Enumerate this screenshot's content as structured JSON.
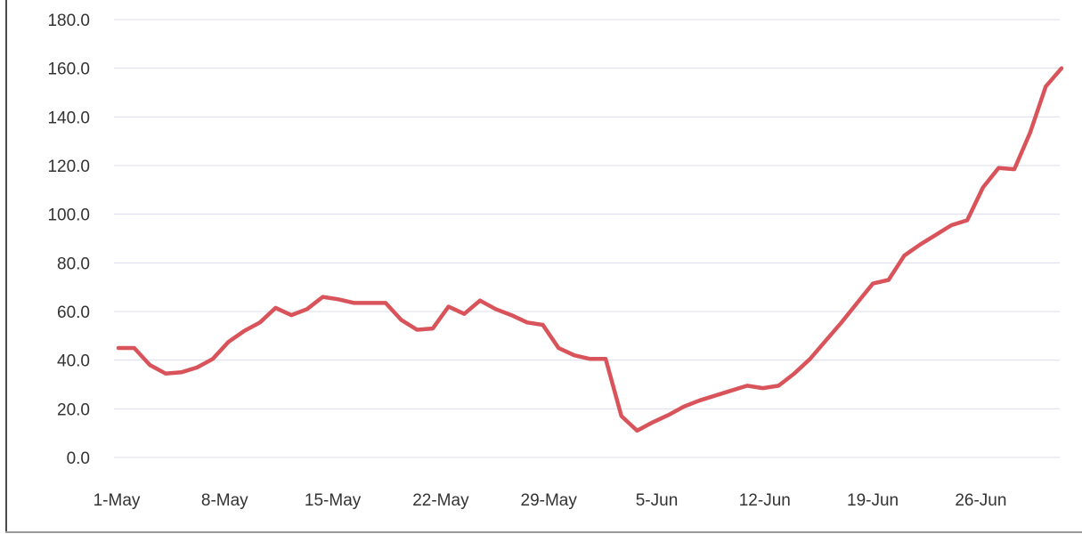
{
  "chart_data": {
    "type": "line",
    "title": "",
    "xlabel": "",
    "ylabel": "",
    "ylim": [
      0,
      180
    ],
    "y_ticks": [
      0,
      20,
      40,
      60,
      80,
      100,
      120,
      140,
      160,
      180
    ],
    "y_tick_labels": [
      "0.0",
      "20.0",
      "40.0",
      "60.0",
      "80.0",
      "100.0",
      "120.0",
      "140.0",
      "160.0",
      "180.0"
    ],
    "x_tick_labels": [
      "1-May",
      "8-May",
      "15-May",
      "22-May",
      "29-May",
      "5-Jun",
      "12-Jun",
      "19-Jun",
      "26-Jun"
    ],
    "grid": true,
    "legend": "none",
    "line_color": "#d9535a",
    "series": [
      {
        "x": [
          "1-May",
          "2-May",
          "3-May",
          "4-May",
          "5-May",
          "6-May",
          "7-May",
          "8-May",
          "9-May",
          "10-May",
          "11-May",
          "12-May",
          "13-May",
          "14-May",
          "15-May",
          "16-May",
          "17-May",
          "18-May",
          "19-May",
          "20-May",
          "21-May",
          "22-May",
          "23-May",
          "24-May",
          "25-May",
          "26-May",
          "27-May",
          "28-May",
          "29-May",
          "30-May",
          "31-May",
          "1-Jun",
          "2-Jun",
          "3-Jun",
          "4-Jun",
          "5-Jun",
          "6-Jun",
          "7-Jun",
          "8-Jun",
          "9-Jun",
          "10-Jun",
          "11-Jun",
          "12-Jun",
          "13-Jun",
          "14-Jun",
          "15-Jun",
          "16-Jun",
          "17-Jun",
          "18-Jun",
          "19-Jun",
          "20-Jun",
          "21-Jun",
          "22-Jun",
          "23-Jun",
          "24-Jun",
          "25-Jun",
          "26-Jun",
          "27-Jun",
          "28-Jun",
          "29-Jun",
          "30-Jun"
        ],
        "values": [
          45.0,
          45.0,
          38.0,
          34.5,
          35.0,
          37.0,
          40.5,
          47.5,
          52.0,
          55.5,
          61.5,
          58.5,
          61.0,
          66.0,
          65.0,
          63.5,
          63.5,
          63.5,
          56.5,
          52.5,
          53.0,
          62.0,
          59.0,
          64.5,
          61.0,
          58.5,
          55.5,
          54.5,
          45.0,
          42.0,
          40.5,
          40.5,
          17.0,
          11.0,
          14.5,
          17.5,
          21.0,
          23.5,
          25.5,
          27.5,
          29.5,
          28.5,
          29.5,
          34.5,
          40.5,
          48.0,
          55.5,
          63.5,
          71.5,
          73.0,
          83.0,
          87.5,
          91.5,
          95.5,
          97.5,
          111.0,
          119.0,
          118.5,
          133.5,
          152.5,
          160.0
        ]
      }
    ]
  }
}
